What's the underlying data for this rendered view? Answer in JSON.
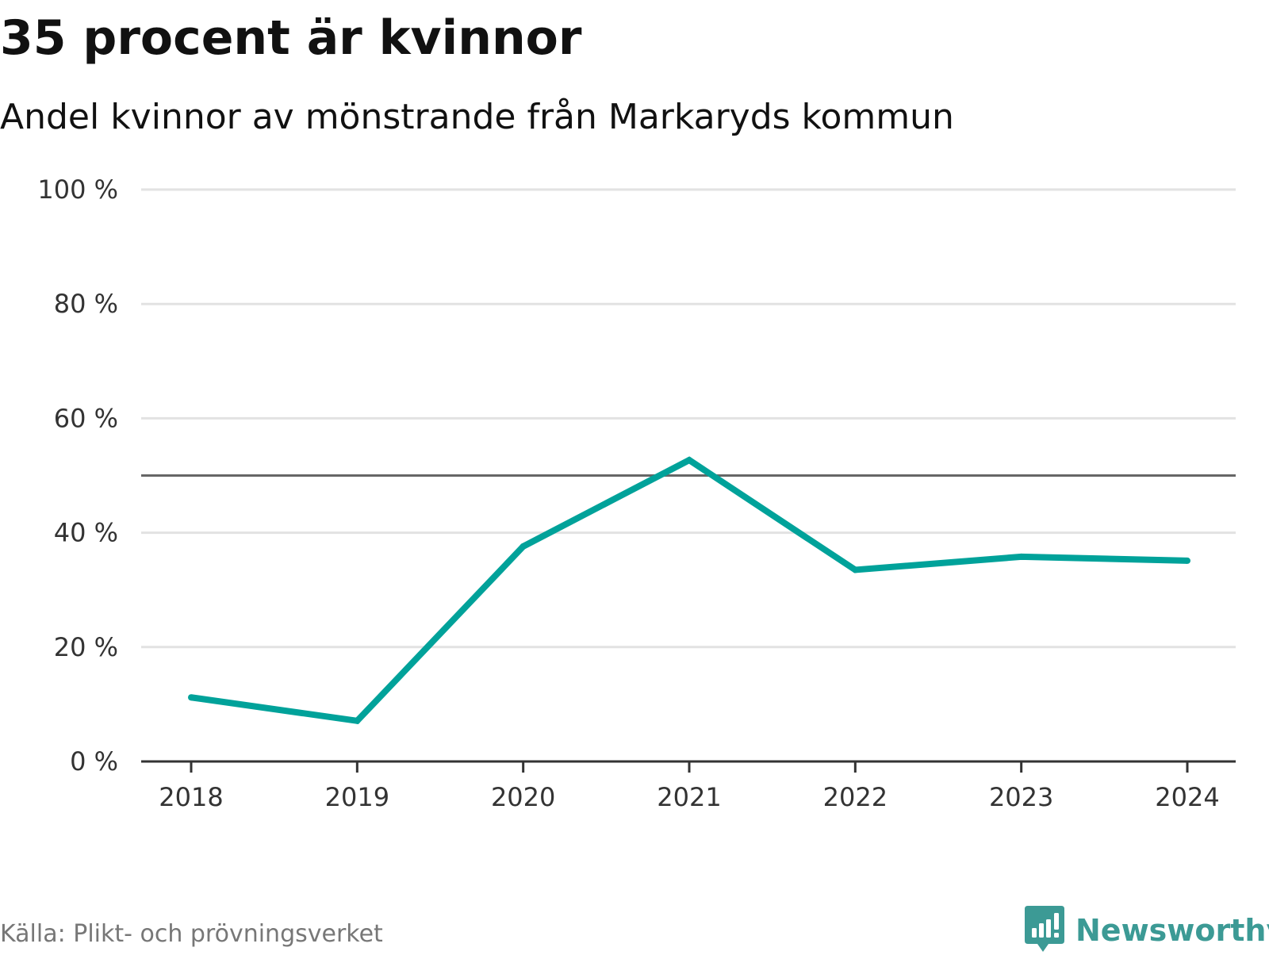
{
  "header": {
    "title": "35 procent är kvinnor",
    "subtitle": "Andel kvinnor av mönstrande från Markaryds kommun"
  },
  "footer": {
    "source": "Källa: Plikt- och prövningsverket",
    "brand": "Newsworthy"
  },
  "colors": {
    "line": "#00a29a",
    "grid": "#e2e2e2",
    "reference": "#666666",
    "axis": "#333333",
    "brand": "#3c9a95"
  },
  "chart_data": {
    "type": "line",
    "title": "35 procent är kvinnor",
    "subtitle": "Andel kvinnor av mönstrande från Markaryds kommun",
    "xlabel": "",
    "ylabel": "",
    "categories": [
      "2018",
      "2019",
      "2020",
      "2021",
      "2022",
      "2023",
      "2024"
    ],
    "series": [
      {
        "name": "Andel kvinnor",
        "values": [
          11.2,
          7.1,
          37.6,
          52.7,
          33.5,
          35.8,
          35.1
        ]
      }
    ],
    "reference_line": 50,
    "ylim": [
      0,
      100
    ],
    "yticks": [
      0,
      20,
      40,
      60,
      80,
      100
    ],
    "ytick_labels": [
      "0 %",
      "20 %",
      "40 %",
      "60 %",
      "80 %",
      "100 %"
    ],
    "grid": true,
    "legend": "none"
  }
}
